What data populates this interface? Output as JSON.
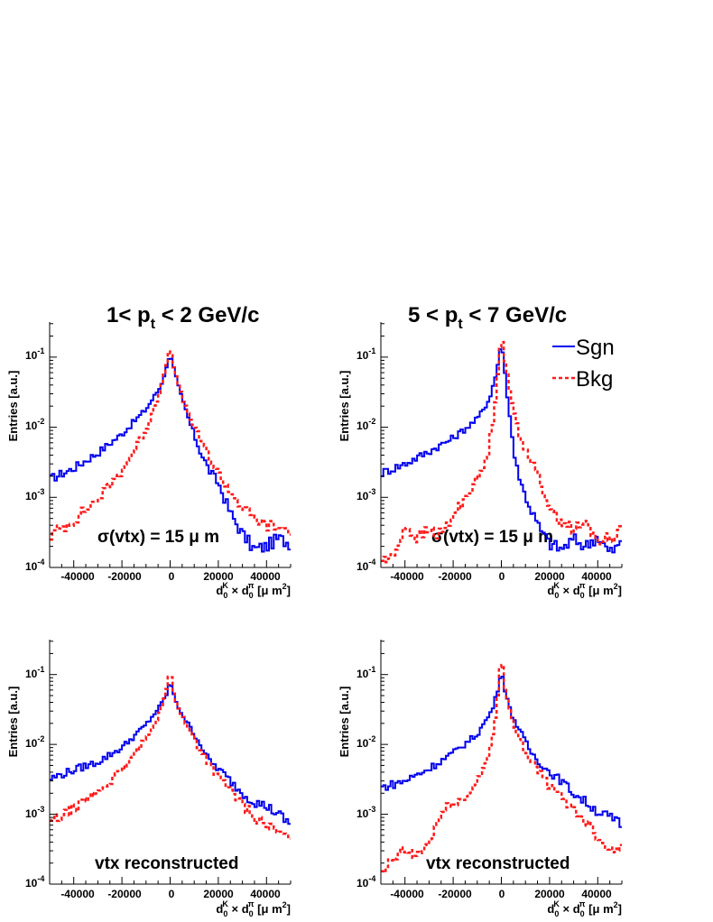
{
  "colors": {
    "signal": "#0000ee",
    "background": "#ff1a1a",
    "axis": "#000000"
  },
  "legend": [
    {
      "label": "Sgn",
      "color": "#0000ee",
      "style": "solid"
    },
    {
      "label": "Bkg",
      "color": "#ff1a1a",
      "style": "dashed"
    }
  ],
  "chart_data": [
    {
      "type": "line",
      "title_prefix": "1< p",
      "title_sub": "t",
      "title_suffix": " < 2 GeV/c",
      "annotation_prefix": "σ(vtx) = 15 ",
      "annotation_mu": "μ",
      "annotation_suffix": " m",
      "ylabel": "Entries [a.u.]",
      "xlabel_d0": "d",
      "xlabel_sub": "0",
      "xlabel_supK": "K",
      "xlabel_times": " × d",
      "xlabel_suppi": "π",
      "xlabel_unit_open": " [",
      "xlabel_mu": "μ",
      "xlabel_unit_mid": " m",
      "xlabel_sq": "2",
      "xlabel_unit_close": "]",
      "xlim": [
        -50000,
        50000
      ],
      "ylim_log10": [
        -4,
        -0.5
      ],
      "ylog": true,
      "x_tick_labels": [
        "-40000",
        "-20000",
        "0",
        "20000",
        "40000"
      ],
      "y_tick_base": "10",
      "y_tick_exponents": [
        "-4",
        "-3",
        "-2",
        "-1"
      ],
      "series": [
        {
          "name": "Sgn",
          "points": [
            [
              -50000,
              0.0018
            ],
            [
              -40000,
              0.0026
            ],
            [
              -30000,
              0.0043
            ],
            [
              -20000,
              0.008
            ],
            [
              -10000,
              0.018
            ],
            [
              -4000,
              0.038
            ],
            [
              -1500,
              0.07
            ],
            [
              0,
              0.115
            ],
            [
              1500,
              0.07
            ],
            [
              4000,
              0.032
            ],
            [
              8000,
              0.012
            ],
            [
              12000,
              0.005
            ],
            [
              16000,
              0.0025
            ],
            [
              20000,
              0.0016
            ],
            [
              25000,
              0.0006
            ],
            [
              30000,
              0.0003
            ],
            [
              35000,
              0.00018
            ],
            [
              40000,
              0.0002
            ],
            [
              45000,
              0.00026
            ],
            [
              50000,
              0.00022
            ]
          ]
        },
        {
          "name": "Bkg",
          "points": [
            [
              -50000,
              0.00028
            ],
            [
              -40000,
              0.00047
            ],
            [
              -30000,
              0.00095
            ],
            [
              -20000,
              0.0024
            ],
            [
              -10000,
              0.0092
            ],
            [
              -5000,
              0.028
            ],
            [
              -2000,
              0.065
            ],
            [
              0,
              0.14
            ],
            [
              2000,
              0.06
            ],
            [
              5000,
              0.026
            ],
            [
              10000,
              0.01
            ],
            [
              15000,
              0.0045
            ],
            [
              20000,
              0.0022
            ],
            [
              25000,
              0.0012
            ],
            [
              30000,
              0.0007
            ],
            [
              35000,
              0.0005
            ],
            [
              40000,
              0.0004
            ],
            [
              45000,
              0.00036
            ],
            [
              50000,
              0.00035
            ]
          ]
        }
      ]
    },
    {
      "type": "line",
      "title_prefix": "5 < p",
      "title_sub": "t",
      "title_suffix": " < 7 GeV/c",
      "annotation_prefix": "σ(vtx) = 15 ",
      "annotation_mu": "μ",
      "annotation_suffix": " m",
      "ylabel": "Entries [a.u.]",
      "xlabel_d0": "d",
      "xlabel_sub": "0",
      "xlabel_supK": "K",
      "xlabel_times": " × d",
      "xlabel_suppi": "π",
      "xlabel_unit_open": " [",
      "xlabel_mu": "μ",
      "xlabel_unit_mid": " m",
      "xlabel_sq": "2",
      "xlabel_unit_close": "]",
      "xlim": [
        -50000,
        50000
      ],
      "ylim_log10": [
        -4,
        -0.5
      ],
      "ylog": true,
      "x_tick_labels": [
        "-40000",
        "-20000",
        "0",
        "20000",
        "40000"
      ],
      "y_tick_base": "10",
      "y_tick_exponents": [
        "-4",
        "-3",
        "-2",
        "-1"
      ],
      "series": [
        {
          "name": "Sgn",
          "points": [
            [
              -50000,
              0.0022
            ],
            [
              -40000,
              0.003
            ],
            [
              -30000,
              0.0045
            ],
            [
              -20000,
              0.007
            ],
            [
              -10000,
              0.013
            ],
            [
              -5000,
              0.025
            ],
            [
              -2000,
              0.06
            ],
            [
              0,
              0.17
            ],
            [
              2000,
              0.04
            ],
            [
              5000,
              0.005
            ],
            [
              8000,
              0.0016
            ],
            [
              12000,
              0.0007
            ],
            [
              16000,
              0.00035
            ],
            [
              20000,
              0.00022
            ],
            [
              25000,
              0.00018
            ],
            [
              30000,
              0.00025
            ],
            [
              35000,
              0.0002
            ],
            [
              40000,
              0.00028
            ],
            [
              45000,
              0.00016
            ],
            [
              50000,
              0.00022
            ]
          ]
        },
        {
          "name": "Bkg",
          "points": [
            [
              -45000,
              0.00013
            ],
            [
              -40000,
              0.0004
            ],
            [
              -35000,
              0.00026
            ],
            [
              -30000,
              0.00034
            ],
            [
              -25000,
              0.00029
            ],
            [
              -20000,
              0.00053
            ],
            [
              -15000,
              0.001
            ],
            [
              -10000,
              0.0018
            ],
            [
              -6000,
              0.0035
            ],
            [
              -3000,
              0.015
            ],
            [
              -1500,
              0.06
            ],
            [
              0,
              0.22
            ],
            [
              1500,
              0.09
            ],
            [
              4000,
              0.025
            ],
            [
              8000,
              0.007
            ],
            [
              14000,
              0.0025
            ],
            [
              18000,
              0.0011
            ],
            [
              22000,
              0.00055
            ],
            [
              26000,
              0.00045
            ],
            [
              30000,
              0.00034
            ],
            [
              35000,
              0.00043
            ],
            [
              40000,
              0.00025
            ],
            [
              45000,
              0.00025
            ],
            [
              50000,
              0.00035
            ]
          ]
        }
      ]
    },
    {
      "type": "line",
      "title_prefix": "",
      "title_sub": "",
      "title_suffix": "",
      "annotation_prefix": "vtx reconstructed",
      "annotation_mu": "",
      "annotation_suffix": "",
      "ylabel": "Entries [a.u.]",
      "xlabel_d0": "d",
      "xlabel_sub": "0",
      "xlabel_supK": "K",
      "xlabel_times": " × d",
      "xlabel_suppi": "π",
      "xlabel_unit_open": " [",
      "xlabel_mu": "μ",
      "xlabel_unit_mid": " m",
      "xlabel_sq": "2",
      "xlabel_unit_close": "]",
      "xlim": [
        -50000,
        50000
      ],
      "ylim_log10": [
        -4,
        -0.5
      ],
      "ylog": true,
      "x_tick_labels": [
        "-40000",
        "-20000",
        "0",
        "20000",
        "40000"
      ],
      "y_tick_base": "10",
      "y_tick_exponents": [
        "-4",
        "-3",
        "-2",
        "-1"
      ],
      "series": [
        {
          "name": "Sgn",
          "points": [
            [
              -50000,
              0.0032
            ],
            [
              -40000,
              0.0043
            ],
            [
              -30000,
              0.0056
            ],
            [
              -20000,
              0.009
            ],
            [
              -10000,
              0.019
            ],
            [
              -4000,
              0.036
            ],
            [
              -1500,
              0.052
            ],
            [
              0,
              0.08
            ],
            [
              1500,
              0.05
            ],
            [
              4000,
              0.031
            ],
            [
              8000,
              0.018
            ],
            [
              12000,
              0.011
            ],
            [
              16000,
              0.006
            ],
            [
              20000,
              0.0045
            ],
            [
              25000,
              0.003
            ],
            [
              30000,
              0.002
            ],
            [
              35000,
              0.0015
            ],
            [
              40000,
              0.0013
            ],
            [
              45000,
              0.001
            ],
            [
              50000,
              0.0007
            ]
          ]
        },
        {
          "name": "Bkg",
          "points": [
            [
              -50000,
              0.00075
            ],
            [
              -40000,
              0.0012
            ],
            [
              -30000,
              0.0021
            ],
            [
              -20000,
              0.0041
            ],
            [
              -10000,
              0.012
            ],
            [
              -4000,
              0.03
            ],
            [
              -1500,
              0.06
            ],
            [
              0,
              0.115
            ],
            [
              1500,
              0.055
            ],
            [
              4000,
              0.03
            ],
            [
              8000,
              0.016
            ],
            [
              12000,
              0.009
            ],
            [
              16000,
              0.0055
            ],
            [
              20000,
              0.0035
            ],
            [
              25000,
              0.0022
            ],
            [
              30000,
              0.0014
            ],
            [
              35000,
              0.0009
            ],
            [
              40000,
              0.0007
            ],
            [
              45000,
              0.00055
            ],
            [
              50000,
              0.00042
            ]
          ]
        }
      ]
    },
    {
      "type": "line",
      "title_prefix": "",
      "title_sub": "",
      "title_suffix": "",
      "annotation_prefix": "vtx reconstructed",
      "annotation_mu": "",
      "annotation_suffix": "",
      "ylabel": "Entries [a.u.]",
      "xlabel_d0": "d",
      "xlabel_sub": "0",
      "xlabel_supK": "K",
      "xlabel_times": " × d",
      "xlabel_suppi": "π",
      "xlabel_unit_open": " [",
      "xlabel_mu": "μ",
      "xlabel_unit_mid": " m",
      "xlabel_sq": "2",
      "xlabel_unit_close": "]",
      "xlim": [
        -50000,
        50000
      ],
      "ylim_log10": [
        -4,
        -0.5
      ],
      "ylog": true,
      "x_tick_labels": [
        "-40000",
        "-20000",
        "0",
        "20000",
        "40000"
      ],
      "y_tick_base": "10",
      "y_tick_exponents": [
        "-4",
        "-3",
        "-2",
        "-1"
      ],
      "series": [
        {
          "name": "Sgn",
          "points": [
            [
              -50000,
              0.0024
            ],
            [
              -40000,
              0.003
            ],
            [
              -30000,
              0.0045
            ],
            [
              -20000,
              0.0075
            ],
            [
              -10000,
              0.014
            ],
            [
              -4000,
              0.03
            ],
            [
              -1500,
              0.06
            ],
            [
              0,
              0.115
            ],
            [
              1500,
              0.06
            ],
            [
              4000,
              0.028
            ],
            [
              8000,
              0.015
            ],
            [
              12000,
              0.008
            ],
            [
              16000,
              0.0055
            ],
            [
              20000,
              0.004
            ],
            [
              25000,
              0.003
            ],
            [
              30000,
              0.002
            ],
            [
              35000,
              0.0015
            ],
            [
              40000,
              0.0011
            ],
            [
              45000,
              0.0009
            ],
            [
              50000,
              0.0007
            ]
          ]
        },
        {
          "name": "Bkg",
          "points": [
            [
              -50000,
              0.00012
            ],
            [
              -45000,
              0.00023
            ],
            [
              -40000,
              0.0003
            ],
            [
              -35000,
              0.00025
            ],
            [
              -30000,
              0.00039
            ],
            [
              -25000,
              0.001
            ],
            [
              -20000,
              0.0015
            ],
            [
              -15000,
              0.0016
            ],
            [
              -10000,
              0.003
            ],
            [
              -6000,
              0.006
            ],
            [
              -3000,
              0.016
            ],
            [
              -1500,
              0.05
            ],
            [
              0,
              0.19
            ],
            [
              1500,
              0.065
            ],
            [
              4000,
              0.026
            ],
            [
              8000,
              0.011
            ],
            [
              12000,
              0.006
            ],
            [
              16000,
              0.004
            ],
            [
              20000,
              0.0025
            ],
            [
              25000,
              0.0018
            ],
            [
              30000,
              0.0012
            ],
            [
              35000,
              0.0008
            ],
            [
              40000,
              0.0005
            ],
            [
              45000,
              0.0003
            ],
            [
              50000,
              0.0004
            ]
          ]
        }
      ]
    }
  ]
}
